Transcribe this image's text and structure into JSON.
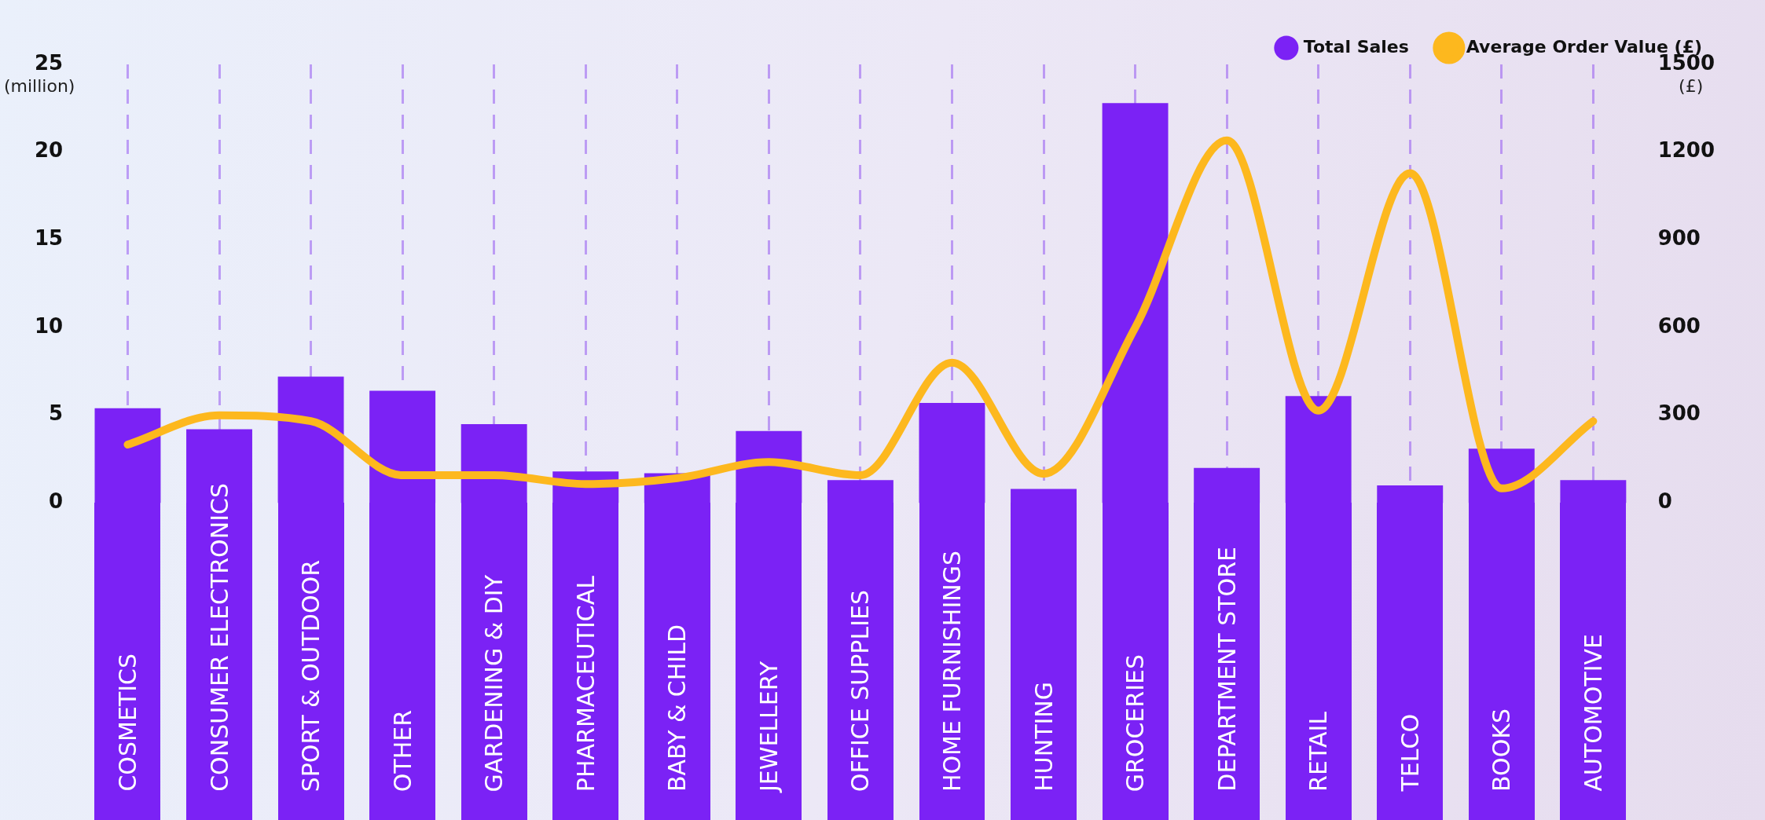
{
  "chart_data": {
    "type": "bar",
    "categories": [
      "COSMETICS",
      "CONSUMER ELECTRONICS",
      "SPORT & OUTDOOR",
      "OTHER",
      "GARDENING & DIY",
      "PHARMACEUTICAL",
      "BABY & CHILD",
      "JEWELLERY",
      "OFFICE SUPPLIES",
      "HOME FURNISHINGS",
      "HUNTING",
      "GROCERIES",
      "DEPARTMENT STORE",
      "RETAIL",
      "TELCO",
      "BOOKS",
      "AUTOMOTIVE"
    ],
    "series": [
      {
        "name": "Total Sales",
        "color": "#7b22f5",
        "values": [
          5.4,
          4.2,
          7.2,
          6.4,
          4.5,
          1.8,
          1.7,
          4.1,
          1.3,
          5.7,
          0.8,
          22.8,
          2.0,
          6.1,
          1.0,
          3.1,
          1.3
        ]
      },
      {
        "name": "Average Order Value (£)",
        "type": "line",
        "axis": "y2",
        "color": "#fdb81e",
        "values": [
          200,
          300,
          280,
          95,
          95,
          65,
          85,
          140,
          95,
          480,
          100,
          600,
          1240,
          316,
          1128,
          50,
          280
        ]
      }
    ],
    "ylabel": "(million)",
    "y2label": "(£)",
    "ylim": [
      0,
      25
    ],
    "yticks": [
      0,
      5,
      10,
      15,
      20,
      25
    ],
    "y2lim": [
      0,
      1500
    ],
    "y2ticks": [
      0,
      300,
      600,
      900,
      1200,
      1500
    ],
    "grid": "x",
    "line_style": "solid",
    "marker": "none",
    "legend": "top right"
  }
}
